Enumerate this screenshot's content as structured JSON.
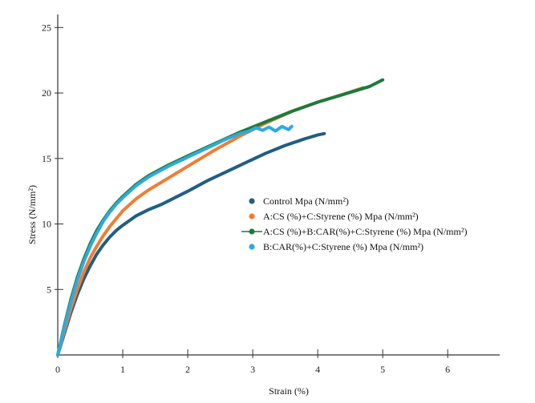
{
  "chart_data": {
    "type": "line",
    "title": "",
    "xlabel": "Strain (%)",
    "ylabel": "Stress (N/mm²)",
    "xlim": [
      0,
      6.8
    ],
    "ylim": [
      0,
      26
    ],
    "xticks": [
      0,
      1,
      2,
      3,
      4,
      5,
      6
    ],
    "yticks": [
      5,
      10,
      15,
      20,
      25
    ],
    "grid": false,
    "legend_position": "center-right",
    "series": [
      {
        "name": "Control  Mpa (N/mm²)",
        "color": "#1f5f82",
        "x": [
          0,
          0.1,
          0.2,
          0.3,
          0.4,
          0.5,
          0.6,
          0.7,
          0.8,
          0.9,
          1.0,
          1.2,
          1.4,
          1.6,
          1.8,
          2.0,
          2.3,
          2.6,
          2.9,
          3.2,
          3.5,
          3.8,
          4.0,
          4.1
        ],
        "y": [
          0,
          1.6,
          3.2,
          4.6,
          5.8,
          6.8,
          7.7,
          8.4,
          9.0,
          9.5,
          9.9,
          10.6,
          11.1,
          11.5,
          12.0,
          12.5,
          13.3,
          14.0,
          14.7,
          15.4,
          16.0,
          16.5,
          16.8,
          16.9
        ]
      },
      {
        "name": "A:CS (%)+C:Styrene (%) Mpa (N/mm²)",
        "color": "#f07d33",
        "x": [
          0,
          0.1,
          0.2,
          0.3,
          0.4,
          0.5,
          0.6,
          0.7,
          0.8,
          0.9,
          1.0,
          1.2,
          1.4,
          1.7,
          2.0,
          2.4,
          2.8,
          3.2,
          3.6,
          4.0,
          4.4,
          4.7
        ],
        "y": [
          0,
          1.8,
          3.5,
          5.0,
          6.3,
          7.4,
          8.3,
          9.1,
          9.8,
          10.4,
          11.0,
          11.9,
          12.6,
          13.5,
          14.4,
          15.6,
          16.7,
          17.7,
          18.6,
          19.3,
          19.9,
          20.4
        ]
      },
      {
        "name": "A:CS (%)+B:CAR(%)+C:Styrene (%) Mpa (N/mm²)",
        "color": "#1e7a3c",
        "x": [
          0,
          0.1,
          0.2,
          0.3,
          0.4,
          0.5,
          0.6,
          0.7,
          0.8,
          0.9,
          1.0,
          1.2,
          1.4,
          1.7,
          2.0,
          2.4,
          2.8,
          3.2,
          3.6,
          4.0,
          4.4,
          4.8,
          5.0
        ],
        "y": [
          0,
          2.2,
          4.2,
          5.9,
          7.3,
          8.5,
          9.5,
          10.3,
          11.0,
          11.6,
          12.1,
          13.0,
          13.7,
          14.5,
          15.2,
          16.1,
          17.0,
          17.8,
          18.6,
          19.3,
          19.9,
          20.5,
          21.0
        ]
      },
      {
        "name": "B:CAR(%)+C:Styrene (%) Mpa (N/mm²)",
        "color": "#2fa9df",
        "x": [
          0,
          0.1,
          0.2,
          0.3,
          0.4,
          0.5,
          0.6,
          0.7,
          0.8,
          0.9,
          1.0,
          1.2,
          1.4,
          1.7,
          2.0,
          2.3,
          2.6,
          2.8,
          2.95,
          3.05,
          3.15,
          3.25,
          3.35,
          3.45,
          3.55,
          3.6
        ],
        "y": [
          0,
          2.1,
          4.0,
          5.7,
          7.1,
          8.3,
          9.3,
          10.2,
          10.9,
          11.5,
          12.0,
          12.9,
          13.6,
          14.4,
          15.1,
          15.8,
          16.5,
          16.9,
          17.1,
          17.35,
          17.15,
          17.4,
          17.1,
          17.45,
          17.2,
          17.45
        ]
      }
    ]
  }
}
